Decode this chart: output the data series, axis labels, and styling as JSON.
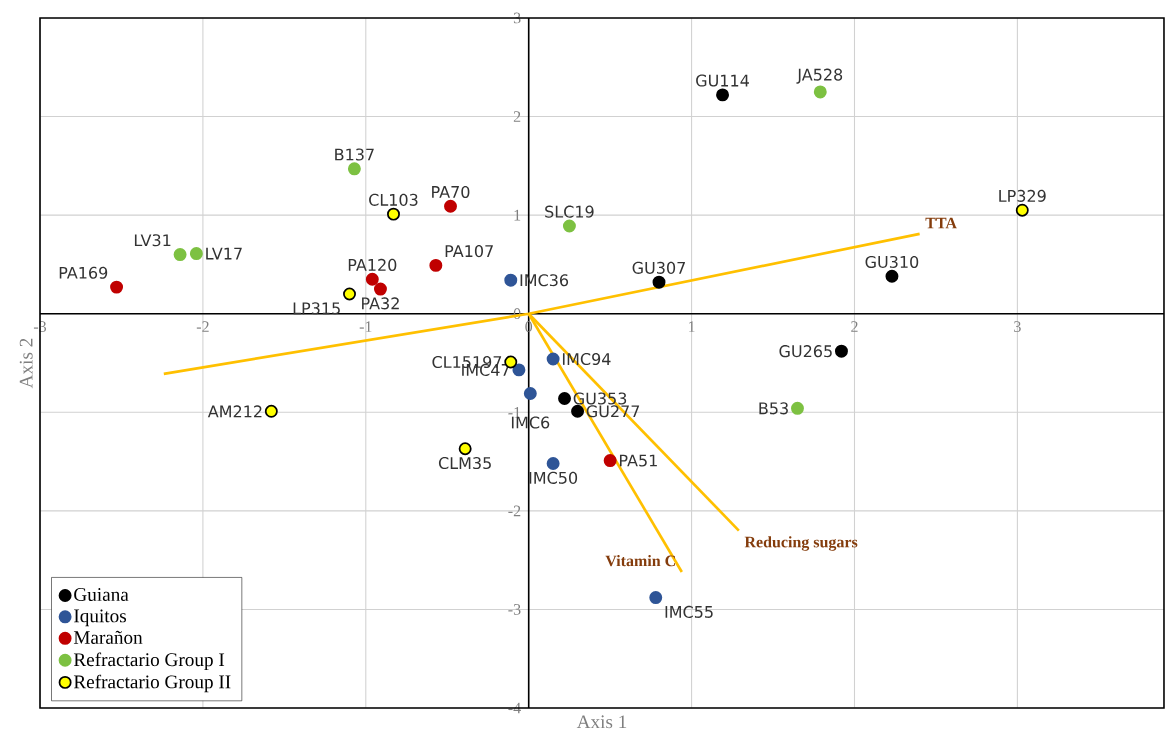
{
  "chart_data": {
    "type": "scatter",
    "xlabel": "Axis 1",
    "ylabel": "Axis 2",
    "xlim": [
      -3,
      3.9
    ],
    "ylim": [
      -4,
      3
    ],
    "xticks": [
      -3,
      -2,
      -1,
      0,
      1,
      2,
      3
    ],
    "yticks": [
      -4,
      -3,
      -2,
      -1,
      0,
      1,
      2,
      3
    ],
    "grid": true,
    "legend": "bottom left",
    "series": [
      {
        "name": "Guiana",
        "color": "#000000",
        "marker": "circle",
        "x": [
          1.19,
          0.8,
          2.23,
          1.92,
          0.22,
          0.3
        ],
        "values": [
          2.22,
          0.32,
          0.38,
          -0.38,
          -0.86,
          -0.99
        ]
      },
      {
        "name": "Iquitos",
        "color": "#2f5597",
        "marker": "circle",
        "x": [
          -0.11,
          0.15,
          -0.06,
          0.01,
          0.15,
          0.78
        ],
        "values": [
          0.34,
          -0.46,
          -0.57,
          -0.81,
          -1.52,
          -2.88
        ]
      },
      {
        "name": "Marañon",
        "color": "#c00000",
        "marker": "circle",
        "x": [
          -0.48,
          -0.57,
          -0.96,
          -0.91,
          -2.53,
          0.5
        ],
        "values": [
          1.09,
          0.49,
          0.35,
          0.25,
          0.27,
          -1.49
        ]
      },
      {
        "name": "Refractario Group I",
        "color": "#7dc142",
        "marker": "circle",
        "x": [
          -1.07,
          -2.14,
          -2.04,
          1.79,
          0.25,
          1.65
        ],
        "values": [
          1.47,
          0.6,
          0.61,
          2.25,
          0.89,
          -0.96
        ]
      },
      {
        "name": "Refractario Group II",
        "color": "#ffff00",
        "marker": "circle",
        "x": [
          -0.83,
          -1.1,
          -0.11,
          -1.58,
          -0.39,
          3.03
        ],
        "values": [
          1.01,
          0.2,
          -0.49,
          -0.99,
          -1.37,
          1.05
        ]
      },
      {
        "name": "TTA",
        "type": "line",
        "marker": "none",
        "color": "#ffc000",
        "x": [
          -2.24,
          0,
          2.4
        ],
        "values": [
          -0.61,
          0,
          0.81
        ]
      },
      {
        "name": "Reducing sugars",
        "type": "line",
        "marker": "none",
        "color": "#ffc000",
        "x": [
          0,
          1.29
        ],
        "values": [
          0,
          -2.2
        ]
      },
      {
        "name": "Vitamin C",
        "type": "line",
        "marker": "none",
        "color": "#ffc000",
        "x": [
          0,
          0.94
        ],
        "values": [
          0,
          -2.62
        ]
      }
    ],
    "annotations": [
      {
        "text": "GU114",
        "x": 1.19,
        "y": 2.22
      },
      {
        "text": "GU307",
        "x": 0.8,
        "y": 0.32
      },
      {
        "text": "GU310",
        "x": 2.23,
        "y": 0.38
      },
      {
        "text": "GU265",
        "x": 1.92,
        "y": -0.38
      },
      {
        "text": "GU353",
        "x": 0.22,
        "y": -0.86
      },
      {
        "text": "GU277",
        "x": 0.3,
        "y": -0.99
      },
      {
        "text": "IMC36",
        "x": -0.11,
        "y": 0.34
      },
      {
        "text": "IMC94",
        "x": 0.15,
        "y": -0.46
      },
      {
        "text": "IMC47",
        "x": -0.06,
        "y": -0.57
      },
      {
        "text": "IMC6",
        "x": 0.01,
        "y": -0.81
      },
      {
        "text": "IMC50",
        "x": 0.15,
        "y": -1.52
      },
      {
        "text": "IMC55",
        "x": 0.78,
        "y": -2.88
      },
      {
        "text": "PA70",
        "x": -0.48,
        "y": 1.09
      },
      {
        "text": "PA107",
        "x": -0.57,
        "y": 0.49
      },
      {
        "text": "PA120",
        "x": -0.96,
        "y": 0.35
      },
      {
        "text": "PA32",
        "x": -0.91,
        "y": 0.25
      },
      {
        "text": "PA169",
        "x": -2.53,
        "y": 0.27
      },
      {
        "text": "PA51",
        "x": 0.5,
        "y": -1.49
      },
      {
        "text": "B137",
        "x": -1.07,
        "y": 1.47
      },
      {
        "text": "LV31",
        "x": -2.14,
        "y": 0.6
      },
      {
        "text": "LV17",
        "x": -2.04,
        "y": 0.61
      },
      {
        "text": "JA528",
        "x": 1.79,
        "y": 2.25
      },
      {
        "text": "SLC19",
        "x": 0.25,
        "y": 0.89
      },
      {
        "text": "B53",
        "x": 1.65,
        "y": -0.96
      },
      {
        "text": "CL103",
        "x": -0.83,
        "y": 1.01
      },
      {
        "text": "LP315",
        "x": -1.1,
        "y": 0.2
      },
      {
        "text": "CL15197",
        "x": -0.11,
        "y": -0.49
      },
      {
        "text": "AM212",
        "x": -1.58,
        "y": -0.99
      },
      {
        "text": "CLM35",
        "x": -0.39,
        "y": -1.37
      },
      {
        "text": "LP329",
        "x": 3.03,
        "y": 1.05
      }
    ]
  }
}
